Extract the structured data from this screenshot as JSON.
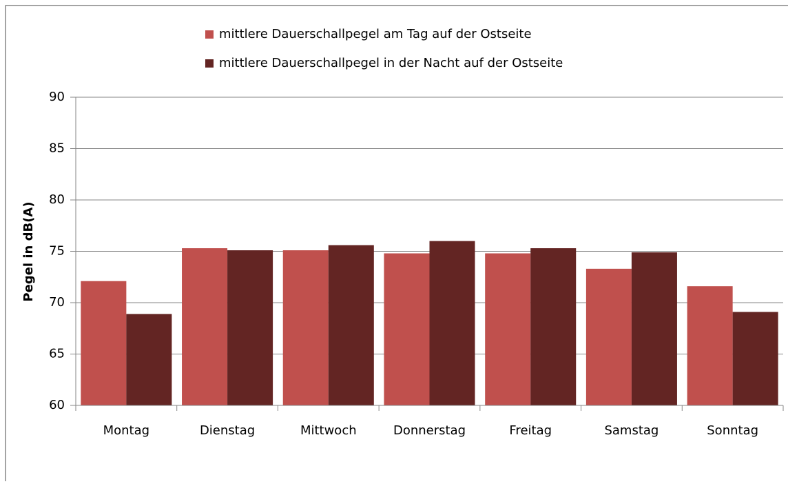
{
  "chart_data": {
    "type": "bar",
    "categories": [
      "Montag",
      "Dienstag",
      "Mittwoch",
      "Donnerstag",
      "Freitag",
      "Samstag",
      "Sonntag"
    ],
    "series": [
      {
        "name": "mittlere Dauerschallpegel am Tag auf der Ostseite",
        "color": "#c0504d",
        "values": [
          72.1,
          75.3,
          75.1,
          74.8,
          74.8,
          73.3,
          71.6
        ]
      },
      {
        "name": "mittlere Dauerschallpegel in der Nacht auf der Ostseite",
        "color": "#632523",
        "values": [
          68.9,
          75.1,
          75.6,
          76.0,
          75.3,
          74.9,
          69.1
        ]
      }
    ],
    "y_label": "Pegel in dB(A)",
    "ylim": [
      60,
      90
    ],
    "yticks": [
      60,
      65,
      70,
      75,
      80,
      85,
      90
    ],
    "grid": true,
    "legend": "top"
  }
}
